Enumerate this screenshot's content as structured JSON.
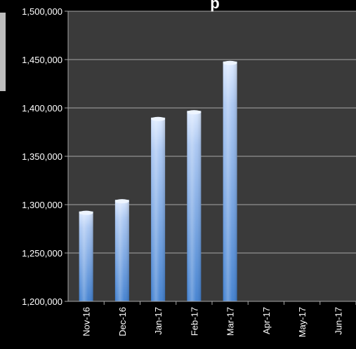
{
  "colors": {
    "page_background": "#000000",
    "plot_background": "#3a3a3a",
    "gridline": "#a6a6a6",
    "axis_text": "#ffffff",
    "bar_top": "#dbe9ff",
    "bar_mid": "#a9c6f2",
    "bar_bottom": "#3f7fd0",
    "left_strip": "#bdbdbd"
  },
  "chart_data": {
    "type": "bar",
    "title_fragment": "p",
    "categories": [
      "Nov-16",
      "Dec-16",
      "Jan-17",
      "Feb-17",
      "Mar-17",
      "Apr-17",
      "May-17",
      "Jun-17"
    ],
    "values": [
      1293000,
      1305000,
      1390000,
      1397000,
      1448000,
      null,
      null,
      null
    ],
    "ylim": [
      1200000,
      1500000
    ],
    "ytick_labels": [
      "1,200,000",
      "1,250,000",
      "1,300,000",
      "1,350,000",
      "1,400,000",
      "1,450,000",
      "1,500,000"
    ],
    "ytick_values": [
      1200000,
      1250000,
      1300000,
      1350000,
      1400000,
      1450000,
      1500000
    ],
    "grid": true,
    "legend": "none"
  }
}
